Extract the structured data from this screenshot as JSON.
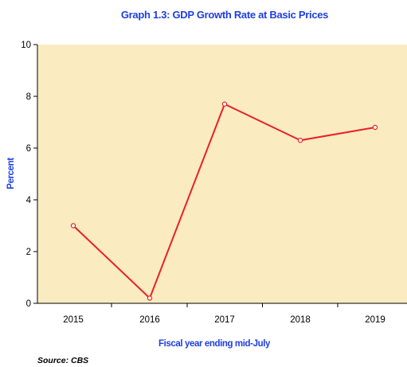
{
  "chart_data": {
    "type": "line",
    "title": "Graph 1.3: GDP Growth Rate at Basic Prices",
    "xlabel": "Fiscal year ending mid-July",
    "ylabel": "Percent",
    "source": "Source: CBS",
    "categories": [
      "2015",
      "2016",
      "2017",
      "2018",
      "2019"
    ],
    "series": [
      {
        "values": [
          3.0,
          0.2,
          7.7,
          6.3,
          6.8
        ]
      }
    ],
    "ylim": [
      0,
      10
    ],
    "yticks": [
      "0",
      "2",
      "4",
      "6",
      "8",
      "10"
    ],
    "grid": false,
    "colors": {
      "plot_background": "#FAEBC0",
      "line": "#E8202A",
      "marker_fill": "#FFFFFF",
      "title": "#1F3FE0",
      "axis_title": "#1F3FE0"
    }
  }
}
